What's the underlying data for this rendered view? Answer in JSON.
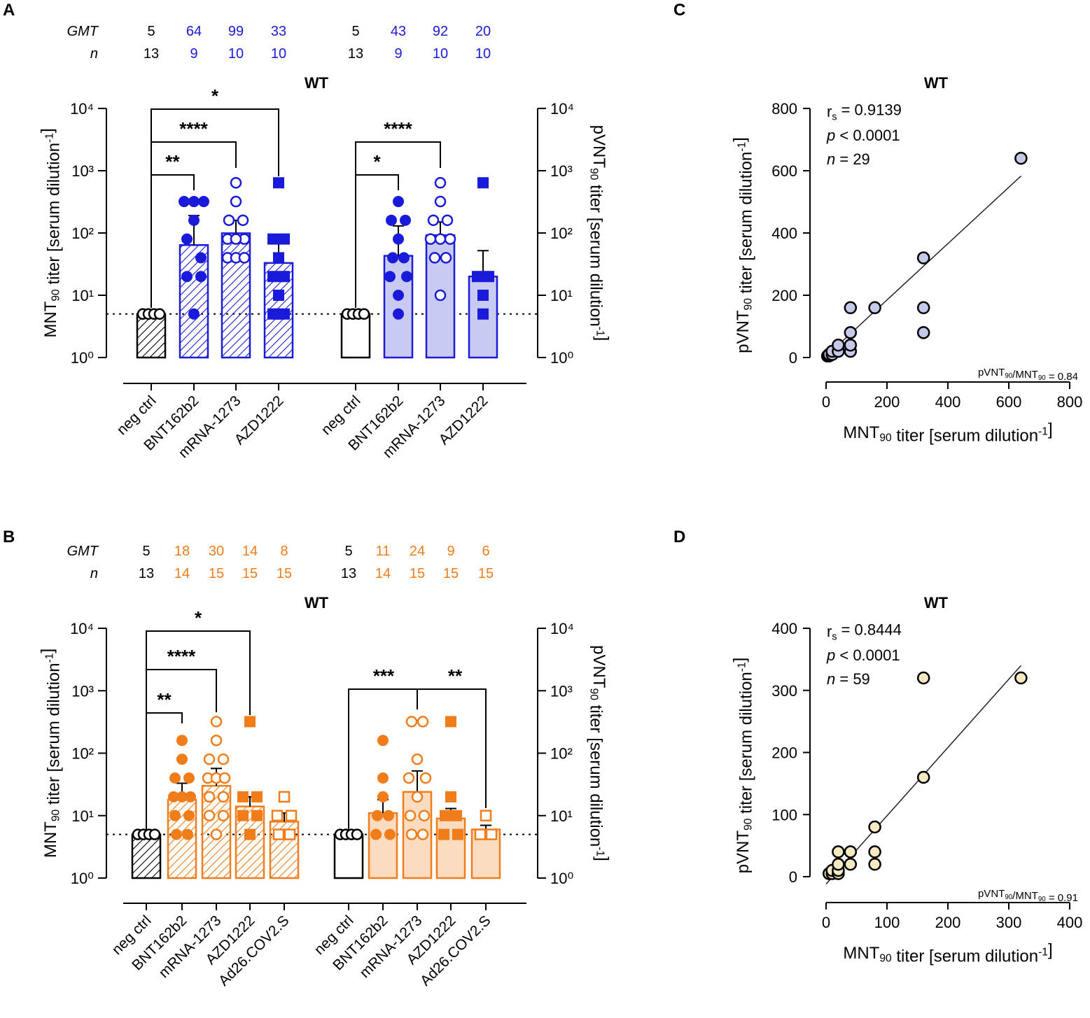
{
  "colors": {
    "blue": "#1a1adb",
    "blue_light": "#c9caf2",
    "orange": "#f07d1a",
    "orange_light": "#fbdcc0",
    "black": "#000000",
    "scatter_fill_c": "#c6c9ea",
    "scatter_fill_d": "#f6eac2"
  },
  "chart_data": [
    {
      "panel": "A",
      "type": "bar",
      "title": "WT",
      "ylabel_left": "MNT90 titer [serum dilution-1]",
      "ylabel_right": "pVNT90 titer [serum dilution-1]",
      "y_scale": "log10",
      "ylim": [
        1,
        10000
      ],
      "y_ticks": [
        "10⁰",
        "10¹",
        "10²",
        "10³",
        "10⁴"
      ],
      "limit_of_detection": 5,
      "header_labels": [
        "GMT",
        "n"
      ],
      "groups": [
        {
          "assay": "MNT90",
          "categories": [
            "neg ctrl",
            "BNT162b2",
            "mRNA-1273",
            "AZD1222"
          ],
          "gmt": [
            5,
            64,
            99,
            33
          ],
          "n": [
            13,
            9,
            10,
            10
          ],
          "values": [
            5,
            64,
            99,
            33
          ],
          "sd_upper": [
            5,
            190,
            160,
            70
          ]
        },
        {
          "assay": "pVNT90",
          "categories": [
            "neg ctrl",
            "BNT162b2",
            "mRNA-1273",
            "AZD1222"
          ],
          "gmt": [
            5,
            43,
            92,
            20
          ],
          "n": [
            13,
            9,
            10,
            10
          ],
          "values": [
            5,
            43,
            92,
            20
          ],
          "sd_upper": [
            5,
            130,
            150,
            52
          ]
        }
      ],
      "significance": [
        {
          "group": 0,
          "from": 0,
          "to": 1,
          "label": "**"
        },
        {
          "group": 0,
          "from": 0,
          "to": 2,
          "label": "****"
        },
        {
          "group": 0,
          "from": 0,
          "to": 3,
          "label": "*"
        },
        {
          "group": 1,
          "from": 0,
          "to": 1,
          "label": "*"
        },
        {
          "group": 1,
          "from": 0,
          "to": 2,
          "label": "****"
        }
      ]
    },
    {
      "panel": "B",
      "type": "bar",
      "title": "WT",
      "ylabel_left": "MNT90 titer [serum dilution-1]",
      "ylabel_right": "pVNT90 titer [serum dilution-1]",
      "y_scale": "log10",
      "ylim": [
        1,
        10000
      ],
      "y_ticks": [
        "10⁰",
        "10¹",
        "10²",
        "10³",
        "10⁴"
      ],
      "limit_of_detection": 5,
      "header_labels": [
        "GMT",
        "n"
      ],
      "groups": [
        {
          "assay": "MNT90",
          "categories": [
            "neg ctrl",
            "BNT162b2",
            "mRNA-1273",
            "AZD1222",
            "Ad26.COV2.S"
          ],
          "gmt": [
            5,
            18,
            30,
            14,
            8
          ],
          "n": [
            13,
            14,
            15,
            15,
            15
          ],
          "values": [
            5,
            18,
            30,
            14,
            8
          ],
          "sd_upper": [
            5,
            33,
            57,
            20,
            11
          ]
        },
        {
          "assay": "pVNT90",
          "categories": [
            "neg ctrl",
            "BNT162b2",
            "mRNA-1273",
            "AZD1222",
            "Ad26.COV2.S"
          ],
          "gmt": [
            5,
            11,
            24,
            9,
            6
          ],
          "n": [
            13,
            14,
            15,
            15,
            15
          ],
          "values": [
            5,
            11,
            24,
            9,
            6
          ],
          "sd_upper": [
            5,
            18,
            52,
            13,
            7
          ]
        }
      ],
      "significance": [
        {
          "group": 0,
          "from": 0,
          "to": 1,
          "label": "**"
        },
        {
          "group": 0,
          "from": 0,
          "to": 2,
          "label": "****"
        },
        {
          "group": 0,
          "from": 0,
          "to": 3,
          "label": "*"
        },
        {
          "group": 1,
          "from": 0,
          "to": 2,
          "label": "***"
        },
        {
          "group": 1,
          "from": 2,
          "to": 4,
          "label": "**"
        }
      ]
    },
    {
      "panel": "C",
      "type": "scatter",
      "title": "WT",
      "xlabel": "MNT90 titer [serum dilution-1]",
      "ylabel": "pVNT90 titer [serum dilution-1]",
      "xlim": [
        0,
        800
      ],
      "ylim": [
        0,
        800
      ],
      "x_ticks": [
        0,
        200,
        400,
        600,
        800
      ],
      "y_ticks": [
        0,
        200,
        400,
        600,
        800
      ],
      "stats": [
        "rs = 0.9139",
        "p < 0.0001",
        "n = 29"
      ],
      "ratio_label": "pVNT90/MNT90 = 0.84",
      "fit_line": {
        "x": [
          0,
          640
        ],
        "y": [
          4,
          583
        ]
      },
      "points": [
        [
          5,
          5
        ],
        [
          5,
          5
        ],
        [
          5,
          5
        ],
        [
          10,
          5
        ],
        [
          10,
          10
        ],
        [
          20,
          10
        ],
        [
          20,
          20
        ],
        [
          40,
          20
        ],
        [
          40,
          40
        ],
        [
          80,
          20
        ],
        [
          80,
          40
        ],
        [
          80,
          80
        ],
        [
          80,
          160
        ],
        [
          160,
          160
        ],
        [
          320,
          80
        ],
        [
          320,
          160
        ],
        [
          320,
          320
        ],
        [
          640,
          640
        ]
      ]
    },
    {
      "panel": "D",
      "type": "scatter",
      "title": "WT",
      "xlabel": "MNT90 titer [serum dilution-1]",
      "ylabel": "pVNT90 titer [serum dilution-1]",
      "xlim": [
        0,
        400
      ],
      "ylim": [
        0,
        400
      ],
      "x_ticks": [
        0,
        100,
        200,
        300,
        400
      ],
      "y_ticks": [
        0,
        100,
        200,
        300,
        400
      ],
      "stats": [
        "rs = 0.8444",
        "p < 0.0001",
        "n = 59"
      ],
      "ratio_label": "pVNT90/MNT90 = 0.91",
      "fit_line": {
        "x": [
          0,
          320
        ],
        "y": [
          -12,
          340
        ]
      },
      "points": [
        [
          5,
          5
        ],
        [
          5,
          5
        ],
        [
          10,
          5
        ],
        [
          10,
          10
        ],
        [
          20,
          5
        ],
        [
          20,
          10
        ],
        [
          20,
          20
        ],
        [
          20,
          40
        ],
        [
          40,
          20
        ],
        [
          40,
          40
        ],
        [
          80,
          20
        ],
        [
          80,
          40
        ],
        [
          80,
          80
        ],
        [
          160,
          160
        ],
        [
          160,
          320
        ],
        [
          320,
          320
        ]
      ]
    }
  ],
  "panel_labels": [
    "A",
    "B",
    "C",
    "D"
  ]
}
